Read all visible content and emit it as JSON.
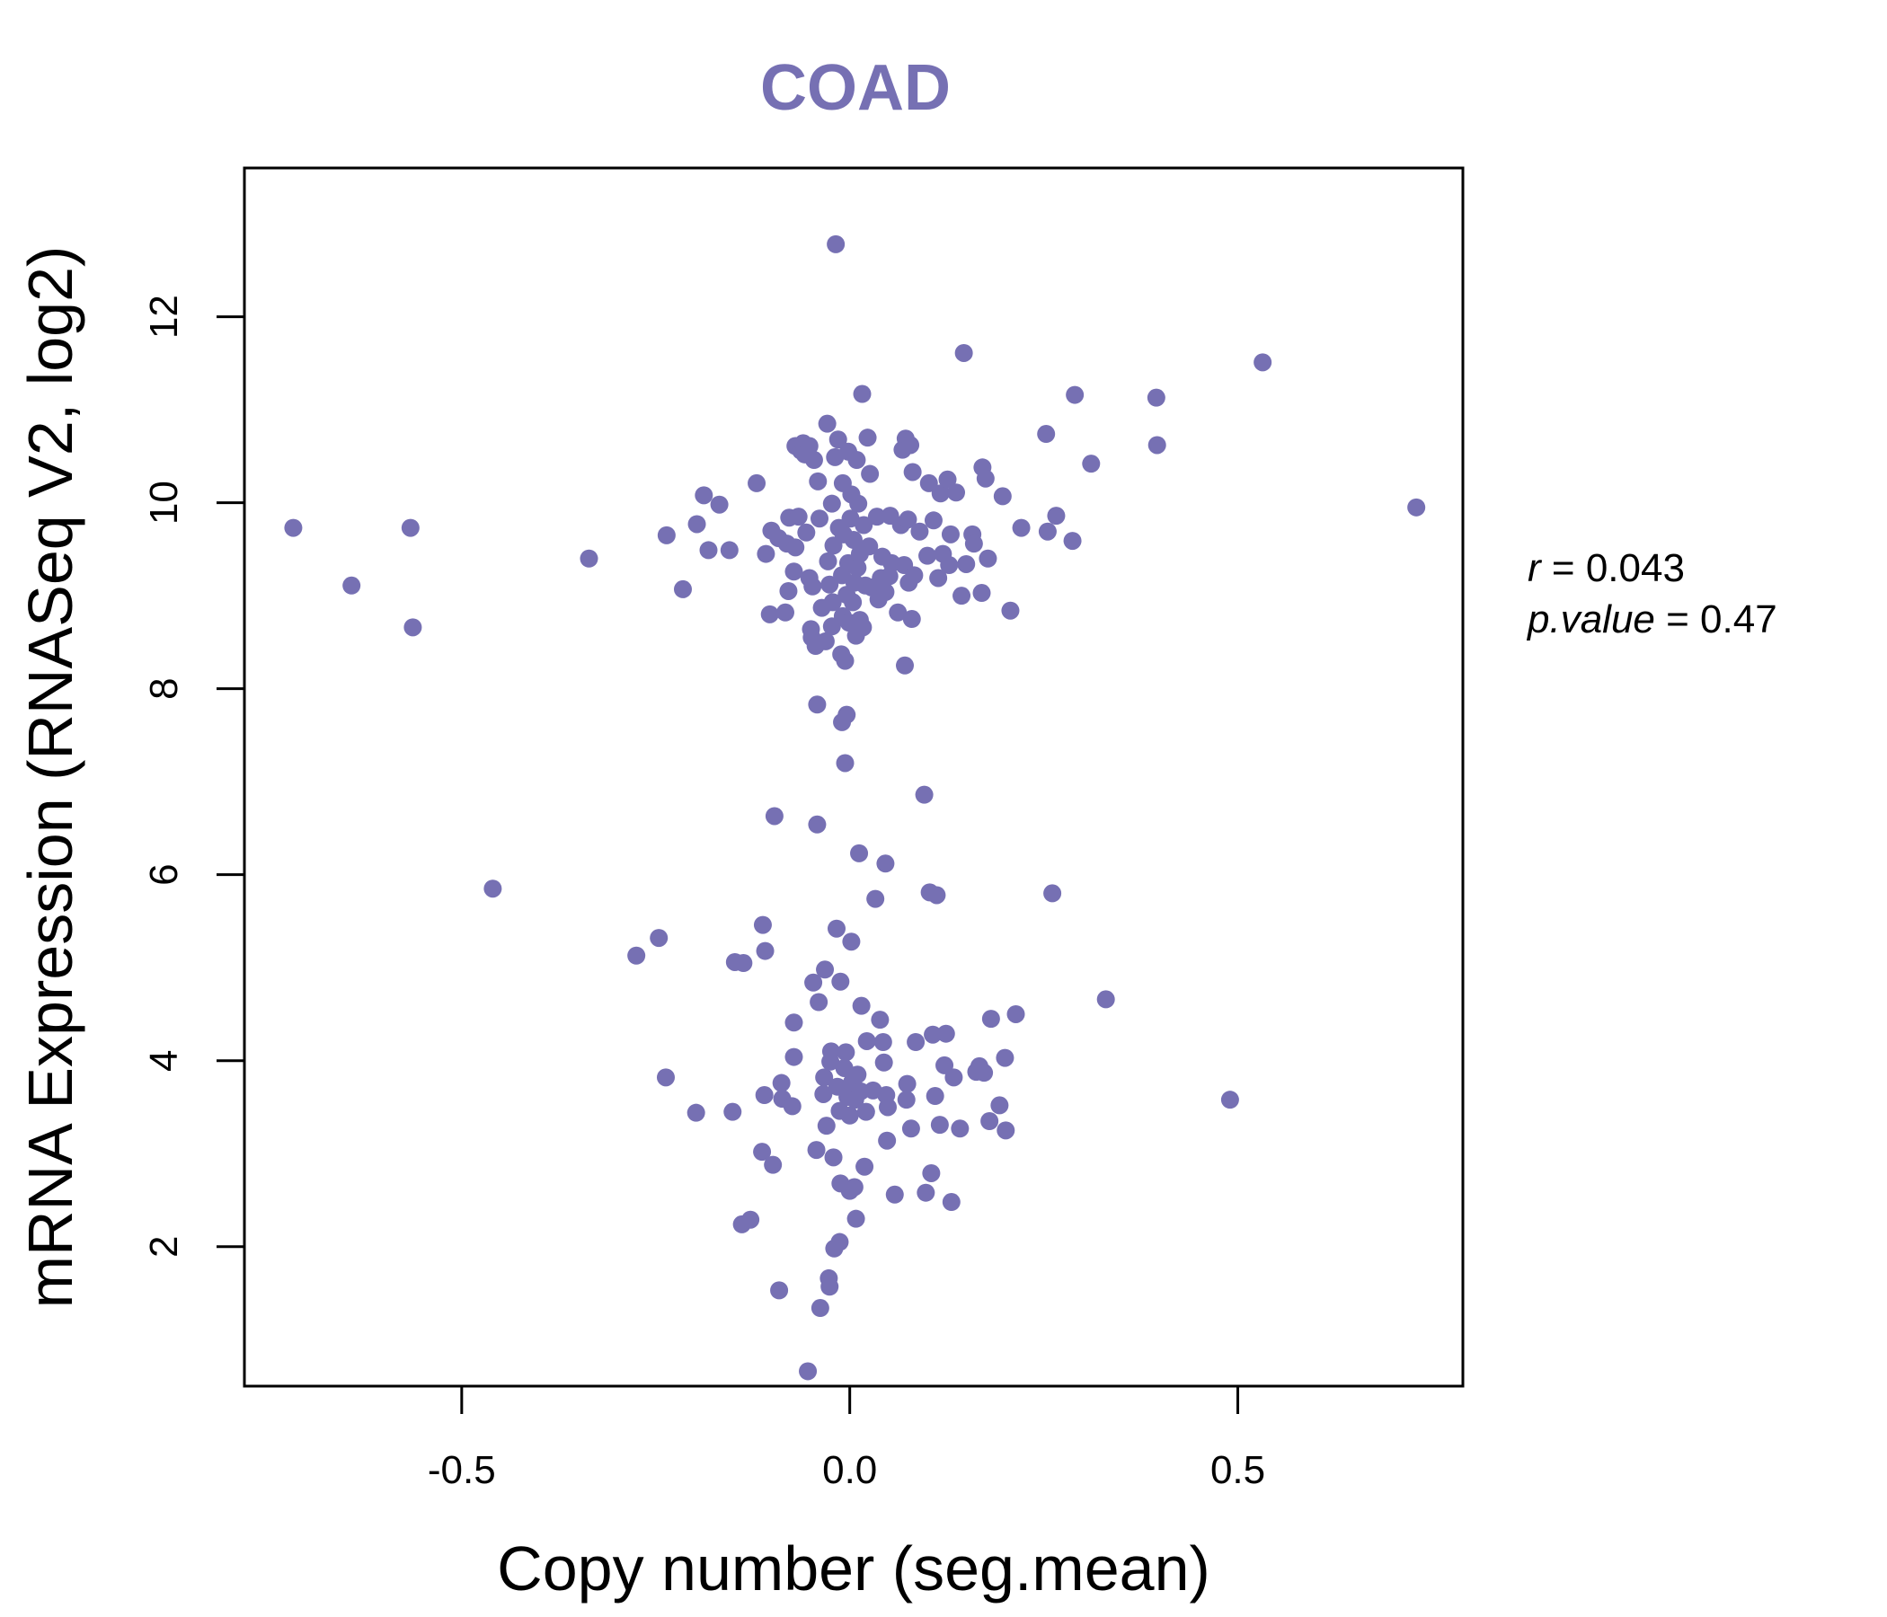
{
  "colors": {
    "point": "#7670B3",
    "title": "#7670B3",
    "axis": "#000000"
  },
  "chart_data": {
    "type": "scatter",
    "title": "COAD",
    "xlabel": "Copy number (seg.mean)",
    "ylabel": "mRNA Expression (RNASeq V2, log2)",
    "xlim": [
      -0.78,
      0.79
    ],
    "ylim": [
      0.5,
      13.6
    ],
    "xticks": [
      -0.5,
      0.0,
      0.5
    ],
    "xtick_labels": [
      "-0.5",
      "0.0",
      "0.5"
    ],
    "yticks": [
      2,
      4,
      6,
      8,
      10,
      12
    ],
    "ytick_labels": [
      "2",
      "4",
      "6",
      "8",
      "10",
      "12"
    ],
    "stats": {
      "r_symbol": "r",
      "r_value": "0.043",
      "p_symbol": "p.value",
      "p_value": "0.47"
    },
    "points": [
      {
        "x": -0.717,
        "y": 9.73
      },
      {
        "x": -0.642,
        "y": 9.11
      },
      {
        "x": -0.566,
        "y": 9.73
      },
      {
        "x": -0.563,
        "y": 8.66
      },
      {
        "x": -0.46,
        "y": 5.85
      },
      {
        "x": -0.336,
        "y": 9.4
      },
      {
        "x": -0.275,
        "y": 5.13
      },
      {
        "x": -0.246,
        "y": 5.32
      },
      {
        "x": -0.236,
        "y": 9.65
      },
      {
        "x": -0.237,
        "y": 3.82
      },
      {
        "x": -0.215,
        "y": 9.07
      },
      {
        "x": -0.198,
        "y": 3.44
      },
      {
        "x": -0.197,
        "y": 9.77
      },
      {
        "x": -0.188,
        "y": 10.08
      },
      {
        "x": -0.182,
        "y": 9.49
      },
      {
        "x": -0.168,
        "y": 9.98
      },
      {
        "x": -0.155,
        "y": 9.49
      },
      {
        "x": -0.151,
        "y": 3.45
      },
      {
        "x": -0.148,
        "y": 5.06
      },
      {
        "x": -0.139,
        "y": 2.24
      },
      {
        "x": -0.137,
        "y": 5.05
      },
      {
        "x": -0.128,
        "y": 2.29
      },
      {
        "x": -0.12,
        "y": 10.21
      },
      {
        "x": -0.112,
        "y": 5.46
      },
      {
        "x": -0.113,
        "y": 3.02
      },
      {
        "x": -0.108,
        "y": 9.45
      },
      {
        "x": -0.11,
        "y": 3.63
      },
      {
        "x": -0.109,
        "y": 5.18
      },
      {
        "x": -0.103,
        "y": 8.8
      },
      {
        "x": -0.101,
        "y": 9.7
      },
      {
        "x": -0.099,
        "y": 2.88
      },
      {
        "x": -0.097,
        "y": 6.63
      },
      {
        "x": -0.092,
        "y": 9.62
      },
      {
        "x": -0.091,
        "y": 1.53
      },
      {
        "x": -0.088,
        "y": 3.76
      },
      {
        "x": -0.087,
        "y": 3.59
      },
      {
        "x": -0.083,
        "y": 8.82
      },
      {
        "x": -0.081,
        "y": 9.56
      },
      {
        "x": -0.079,
        "y": 9.05
      },
      {
        "x": -0.078,
        "y": 9.84
      },
      {
        "x": -0.074,
        "y": 3.51
      },
      {
        "x": -0.072,
        "y": 9.26
      },
      {
        "x": -0.072,
        "y": 4.41
      },
      {
        "x": -0.072,
        "y": 4.04
      },
      {
        "x": -0.07,
        "y": 9.52
      },
      {
        "x": -0.07,
        "y": 10.61
      },
      {
        "x": -0.066,
        "y": 9.85
      },
      {
        "x": -0.063,
        "y": 10.56
      },
      {
        "x": -0.06,
        "y": 10.64
      },
      {
        "x": -0.058,
        "y": 10.52
      },
      {
        "x": -0.056,
        "y": 9.68
      },
      {
        "x": -0.054,
        "y": 0.66
      },
      {
        "x": -0.052,
        "y": 10.61
      },
      {
        "x": -0.052,
        "y": 9.19
      },
      {
        "x": -0.05,
        "y": 8.64
      },
      {
        "x": -0.049,
        "y": 8.55
      },
      {
        "x": -0.048,
        "y": 9.1
      },
      {
        "x": -0.047,
        "y": 4.84
      },
      {
        "x": -0.046,
        "y": 10.46
      },
      {
        "x": -0.044,
        "y": 8.46
      },
      {
        "x": -0.043,
        "y": 3.04
      },
      {
        "x": -0.042,
        "y": 7.83
      },
      {
        "x": -0.042,
        "y": 6.54
      },
      {
        "x": -0.041,
        "y": 10.23
      },
      {
        "x": -0.04,
        "y": 4.63
      },
      {
        "x": -0.039,
        "y": 9.83
      },
      {
        "x": -0.038,
        "y": 1.34
      },
      {
        "x": -0.036,
        "y": 8.87
      },
      {
        "x": -0.034,
        "y": 3.64
      },
      {
        "x": -0.033,
        "y": 3.82
      },
      {
        "x": -0.032,
        "y": 4.98
      },
      {
        "x": -0.031,
        "y": 8.51
      },
      {
        "x": -0.03,
        "y": 3.3
      },
      {
        "x": -0.029,
        "y": 10.85
      },
      {
        "x": -0.028,
        "y": 9.37
      },
      {
        "x": -0.027,
        "y": 1.66
      },
      {
        "x": -0.026,
        "y": 9.12
      },
      {
        "x": -0.026,
        "y": 1.57
      },
      {
        "x": -0.025,
        "y": 3.99
      },
      {
        "x": -0.024,
        "y": 4.1
      },
      {
        "x": -0.023,
        "y": 9.99
      },
      {
        "x": -0.023,
        "y": 8.67
      },
      {
        "x": -0.022,
        "y": 8.93
      },
      {
        "x": -0.021,
        "y": 2.96
      },
      {
        "x": -0.021,
        "y": 9.54
      },
      {
        "x": -0.02,
        "y": 1.98
      },
      {
        "x": -0.019,
        "y": 10.49
      },
      {
        "x": -0.018,
        "y": 12.78
      },
      {
        "x": -0.017,
        "y": 5.42
      },
      {
        "x": -0.016,
        "y": 3.72
      },
      {
        "x": -0.015,
        "y": 10.68
      },
      {
        "x": -0.014,
        "y": 9.73
      },
      {
        "x": -0.013,
        "y": 3.46
      },
      {
        "x": -0.013,
        "y": 2.05
      },
      {
        "x": -0.012,
        "y": 2.68
      },
      {
        "x": -0.012,
        "y": 4.85
      },
      {
        "x": -0.011,
        "y": 8.37
      },
      {
        "x": -0.01,
        "y": 9.22
      },
      {
        "x": -0.01,
        "y": 7.64
      },
      {
        "x": -0.009,
        "y": 8.78
      },
      {
        "x": -0.009,
        "y": 10.21
      },
      {
        "x": -0.008,
        "y": 9.66
      },
      {
        "x": -0.007,
        "y": 3.92
      },
      {
        "x": -0.006,
        "y": 7.2
      },
      {
        "x": -0.006,
        "y": 8.3
      },
      {
        "x": -0.005,
        "y": 4.09
      },
      {
        "x": -0.004,
        "y": 9.01
      },
      {
        "x": -0.004,
        "y": 7.72
      },
      {
        "x": -0.003,
        "y": 3.61
      },
      {
        "x": -0.002,
        "y": 10.55
      },
      {
        "x": -0.002,
        "y": 9.35
      },
      {
        "x": -0.001,
        "y": 8.71
      },
      {
        "x": 0.0,
        "y": 3.41
      },
      {
        "x": 0.0,
        "y": 2.6
      },
      {
        "x": 0.001,
        "y": 9.83
      },
      {
        "x": 0.002,
        "y": 10.09
      },
      {
        "x": 0.002,
        "y": 5.28
      },
      {
        "x": 0.003,
        "y": 3.77
      },
      {
        "x": 0.004,
        "y": 8.93
      },
      {
        "x": 0.005,
        "y": 9.6
      },
      {
        "x": 0.006,
        "y": 2.64
      },
      {
        "x": 0.006,
        "y": 9.14
      },
      {
        "x": 0.007,
        "y": 3.58
      },
      {
        "x": 0.008,
        "y": 2.3
      },
      {
        "x": 0.008,
        "y": 8.57
      },
      {
        "x": 0.009,
        "y": 10.46
      },
      {
        "x": 0.01,
        "y": 9.3
      },
      {
        "x": 0.01,
        "y": 3.85
      },
      {
        "x": 0.011,
        "y": 9.99
      },
      {
        "x": 0.012,
        "y": 6.23
      },
      {
        "x": 0.013,
        "y": 8.74
      },
      {
        "x": 0.013,
        "y": 9.45
      },
      {
        "x": 0.014,
        "y": 3.67
      },
      {
        "x": 0.015,
        "y": 4.59
      },
      {
        "x": 0.016,
        "y": 11.17
      },
      {
        "x": 0.017,
        "y": 8.66
      },
      {
        "x": 0.018,
        "y": 9.76
      },
      {
        "x": 0.019,
        "y": 2.86
      },
      {
        "x": 0.02,
        "y": 9.11
      },
      {
        "x": 0.021,
        "y": 3.45
      },
      {
        "x": 0.022,
        "y": 4.21
      },
      {
        "x": 0.023,
        "y": 10.7
      },
      {
        "x": 0.025,
        "y": 9.53
      },
      {
        "x": 0.026,
        "y": 10.31
      },
      {
        "x": 0.028,
        "y": 9.09
      },
      {
        "x": 0.03,
        "y": 3.68
      },
      {
        "x": 0.033,
        "y": 5.74
      },
      {
        "x": 0.035,
        "y": 9.85
      },
      {
        "x": 0.037,
        "y": 8.96
      },
      {
        "x": 0.039,
        "y": 4.44
      },
      {
        "x": 0.04,
        "y": 9.19
      },
      {
        "x": 0.042,
        "y": 9.42
      },
      {
        "x": 0.043,
        "y": 4.2
      },
      {
        "x": 0.044,
        "y": 3.98
      },
      {
        "x": 0.046,
        "y": 9.04
      },
      {
        "x": 0.046,
        "y": 6.12
      },
      {
        "x": 0.047,
        "y": 3.63
      },
      {
        "x": 0.048,
        "y": 3.14
      },
      {
        "x": 0.049,
        "y": 3.5
      },
      {
        "x": 0.051,
        "y": 9.21
      },
      {
        "x": 0.052,
        "y": 9.86
      },
      {
        "x": 0.054,
        "y": 9.35
      },
      {
        "x": 0.058,
        "y": 2.56
      },
      {
        "x": 0.062,
        "y": 8.82
      },
      {
        "x": 0.066,
        "y": 9.76
      },
      {
        "x": 0.068,
        "y": 10.57
      },
      {
        "x": 0.07,
        "y": 9.33
      },
      {
        "x": 0.071,
        "y": 8.25
      },
      {
        "x": 0.072,
        "y": 10.69
      },
      {
        "x": 0.073,
        "y": 3.58
      },
      {
        "x": 0.074,
        "y": 3.75
      },
      {
        "x": 0.075,
        "y": 9.82
      },
      {
        "x": 0.076,
        "y": 9.14
      },
      {
        "x": 0.078,
        "y": 10.62
      },
      {
        "x": 0.079,
        "y": 3.27
      },
      {
        "x": 0.08,
        "y": 8.75
      },
      {
        "x": 0.081,
        "y": 10.33
      },
      {
        "x": 0.083,
        "y": 9.22
      },
      {
        "x": 0.085,
        "y": 4.2
      },
      {
        "x": 0.09,
        "y": 9.69
      },
      {
        "x": 0.096,
        "y": 6.86
      },
      {
        "x": 0.098,
        "y": 2.58
      },
      {
        "x": 0.1,
        "y": 9.43
      },
      {
        "x": 0.102,
        "y": 10.21
      },
      {
        "x": 0.103,
        "y": 5.81
      },
      {
        "x": 0.105,
        "y": 2.79
      },
      {
        "x": 0.107,
        "y": 4.28
      },
      {
        "x": 0.108,
        "y": 9.81
      },
      {
        "x": 0.11,
        "y": 3.62
      },
      {
        "x": 0.112,
        "y": 5.78
      },
      {
        "x": 0.114,
        "y": 9.19
      },
      {
        "x": 0.116,
        "y": 3.31
      },
      {
        "x": 0.117,
        "y": 10.1
      },
      {
        "x": 0.12,
        "y": 9.45
      },
      {
        "x": 0.122,
        "y": 3.95
      },
      {
        "x": 0.124,
        "y": 4.29
      },
      {
        "x": 0.126,
        "y": 10.25
      },
      {
        "x": 0.128,
        "y": 9.33
      },
      {
        "x": 0.13,
        "y": 9.66
      },
      {
        "x": 0.131,
        "y": 2.48
      },
      {
        "x": 0.134,
        "y": 3.82
      },
      {
        "x": 0.137,
        "y": 10.11
      },
      {
        "x": 0.142,
        "y": 3.27
      },
      {
        "x": 0.144,
        "y": 9.0
      },
      {
        "x": 0.147,
        "y": 11.61
      },
      {
        "x": 0.15,
        "y": 9.34
      },
      {
        "x": 0.158,
        "y": 9.66
      },
      {
        "x": 0.16,
        "y": 9.56
      },
      {
        "x": 0.163,
        "y": 3.88
      },
      {
        "x": 0.167,
        "y": 3.94
      },
      {
        "x": 0.17,
        "y": 9.03
      },
      {
        "x": 0.171,
        "y": 10.38
      },
      {
        "x": 0.173,
        "y": 3.87
      },
      {
        "x": 0.175,
        "y": 10.26
      },
      {
        "x": 0.178,
        "y": 9.4
      },
      {
        "x": 0.18,
        "y": 3.35
      },
      {
        "x": 0.182,
        "y": 4.45
      },
      {
        "x": 0.193,
        "y": 3.52
      },
      {
        "x": 0.197,
        "y": 10.07
      },
      {
        "x": 0.2,
        "y": 4.03
      },
      {
        "x": 0.201,
        "y": 3.25
      },
      {
        "x": 0.207,
        "y": 8.84
      },
      {
        "x": 0.214,
        "y": 4.5
      },
      {
        "x": 0.221,
        "y": 9.73
      },
      {
        "x": 0.253,
        "y": 10.74
      },
      {
        "x": 0.255,
        "y": 9.69
      },
      {
        "x": 0.261,
        "y": 5.8
      },
      {
        "x": 0.266,
        "y": 9.86
      },
      {
        "x": 0.287,
        "y": 9.59
      },
      {
        "x": 0.29,
        "y": 11.16
      },
      {
        "x": 0.311,
        "y": 10.42
      },
      {
        "x": 0.33,
        "y": 4.66
      },
      {
        "x": 0.395,
        "y": 11.13
      },
      {
        "x": 0.396,
        "y": 10.62
      },
      {
        "x": 0.49,
        "y": 3.58
      },
      {
        "x": 0.532,
        "y": 11.51
      },
      {
        "x": 0.73,
        "y": 9.95
      }
    ]
  }
}
